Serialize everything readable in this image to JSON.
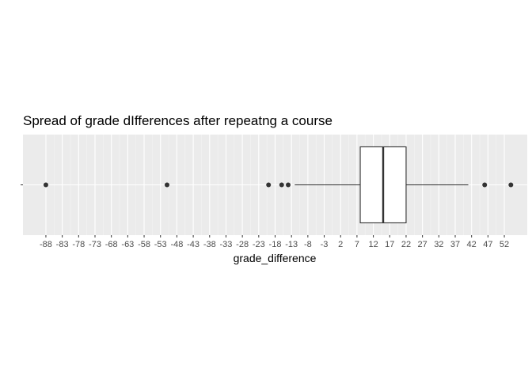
{
  "chart_data": {
    "type": "boxplot",
    "title": "Spread of grade dIfferences after repeatng a course",
    "xlabel": "grade_difference",
    "ylabel": "",
    "orientation": "horizontal",
    "xlim": [
      -95,
      59
    ],
    "x_ticks": [
      -88,
      -83,
      -78,
      -73,
      -68,
      -63,
      -58,
      -53,
      -48,
      -43,
      -38,
      -33,
      -28,
      -23,
      -18,
      -13,
      -8,
      -3,
      2,
      7,
      12,
      17,
      22,
      27,
      32,
      37,
      42,
      47,
      52
    ],
    "y_ticks": [
      ""
    ],
    "box": {
      "q1": 8,
      "median": 15,
      "q3": 22,
      "whisker_low": -12,
      "whisker_high": 41
    },
    "outliers": [
      -88,
      -51,
      -20,
      -16,
      -14,
      46,
      54
    ],
    "grid": true,
    "colors": {
      "panel_bg": "#ebebeb",
      "grid_major": "#ffffff",
      "grid_minor": "#f5f5f5",
      "box_fill": "#ffffff",
      "box_stroke": "#333333",
      "point": "#333333"
    }
  }
}
